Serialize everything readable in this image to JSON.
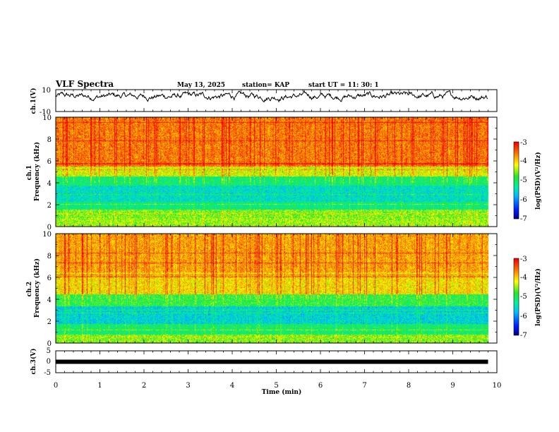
{
  "header": {
    "title": "VLF Spectra",
    "date": "May 13, 2025",
    "station": "station= KAP",
    "start": "start  UT  =   11: 30: 1"
  },
  "colors": {
    "trace": "#000000",
    "axis": "#000000"
  },
  "chart_data": [
    {
      "type": "line",
      "name": "ch1-waveform",
      "ylabel": "ch.1(V)",
      "ylim": [
        -10,
        10
      ],
      "yticks": [
        10,
        -10
      ],
      "xlim": [
        0,
        10
      ],
      "x_end": 9.8,
      "amplitude_range": [
        -2,
        9
      ],
      "mean_level": 4
    },
    {
      "type": "heatmap",
      "name": "ch1-spectrogram",
      "ylabel": "ch.1\nFrequency (kHz)",
      "ylim": [
        0,
        10
      ],
      "yticks": [
        "0",
        "2",
        "4",
        "6",
        "8",
        "10"
      ],
      "xlim": [
        0,
        10
      ],
      "x_end": 9.8,
      "bands": [
        {
          "from": 0,
          "to": 0.8,
          "level": -4.5
        },
        {
          "from": 0.8,
          "to": 1.6,
          "level": -4.6
        },
        {
          "from": 1.6,
          "to": 2.3,
          "level": -5.2
        },
        {
          "from": 2.3,
          "to": 3.8,
          "level": -5.5
        },
        {
          "from": 3.8,
          "to": 4.6,
          "level": -5.1
        },
        {
          "from": 4.6,
          "to": 5.5,
          "level": -4.3
        },
        {
          "from": 5.5,
          "to": 10,
          "level": -3.6
        }
      ]
    },
    {
      "type": "heatmap",
      "name": "ch2-spectrogram",
      "ylabel": "ch.2\nFrequency (kHz)",
      "ylim": [
        0,
        10
      ],
      "yticks": [
        "0",
        "2",
        "4",
        "6",
        "8",
        "10"
      ],
      "xlim": [
        0,
        10
      ],
      "x_end": 9.8,
      "bands": [
        {
          "from": 0,
          "to": 0.8,
          "level": -4.6
        },
        {
          "from": 0.8,
          "to": 1.8,
          "level": -5.1
        },
        {
          "from": 1.8,
          "to": 3.4,
          "level": -5.6
        },
        {
          "from": 3.4,
          "to": 4.5,
          "level": -4.9
        },
        {
          "from": 4.5,
          "to": 6.5,
          "level": -4.1
        },
        {
          "from": 6.5,
          "to": 10,
          "level": -3.8
        }
      ]
    },
    {
      "type": "line",
      "name": "ch3-waveform",
      "ylabel": "ch.3(V)",
      "ylim": [
        -5,
        5
      ],
      "yticks": [
        "5",
        "0",
        "-5"
      ],
      "xlim": [
        0,
        10
      ],
      "x_end": 9.8,
      "level": 0
    }
  ],
  "colorbar": {
    "label": "log(PSD)(V²/Hz)",
    "range": [
      -7,
      -3
    ],
    "ticks": [
      "-3",
      "-4",
      "-5",
      "-6",
      "-7"
    ]
  },
  "xaxis": {
    "label": "Time (min)",
    "ticks": [
      "0",
      "1",
      "2",
      "3",
      "4",
      "5",
      "6",
      "7",
      "8",
      "9",
      "10"
    ]
  }
}
